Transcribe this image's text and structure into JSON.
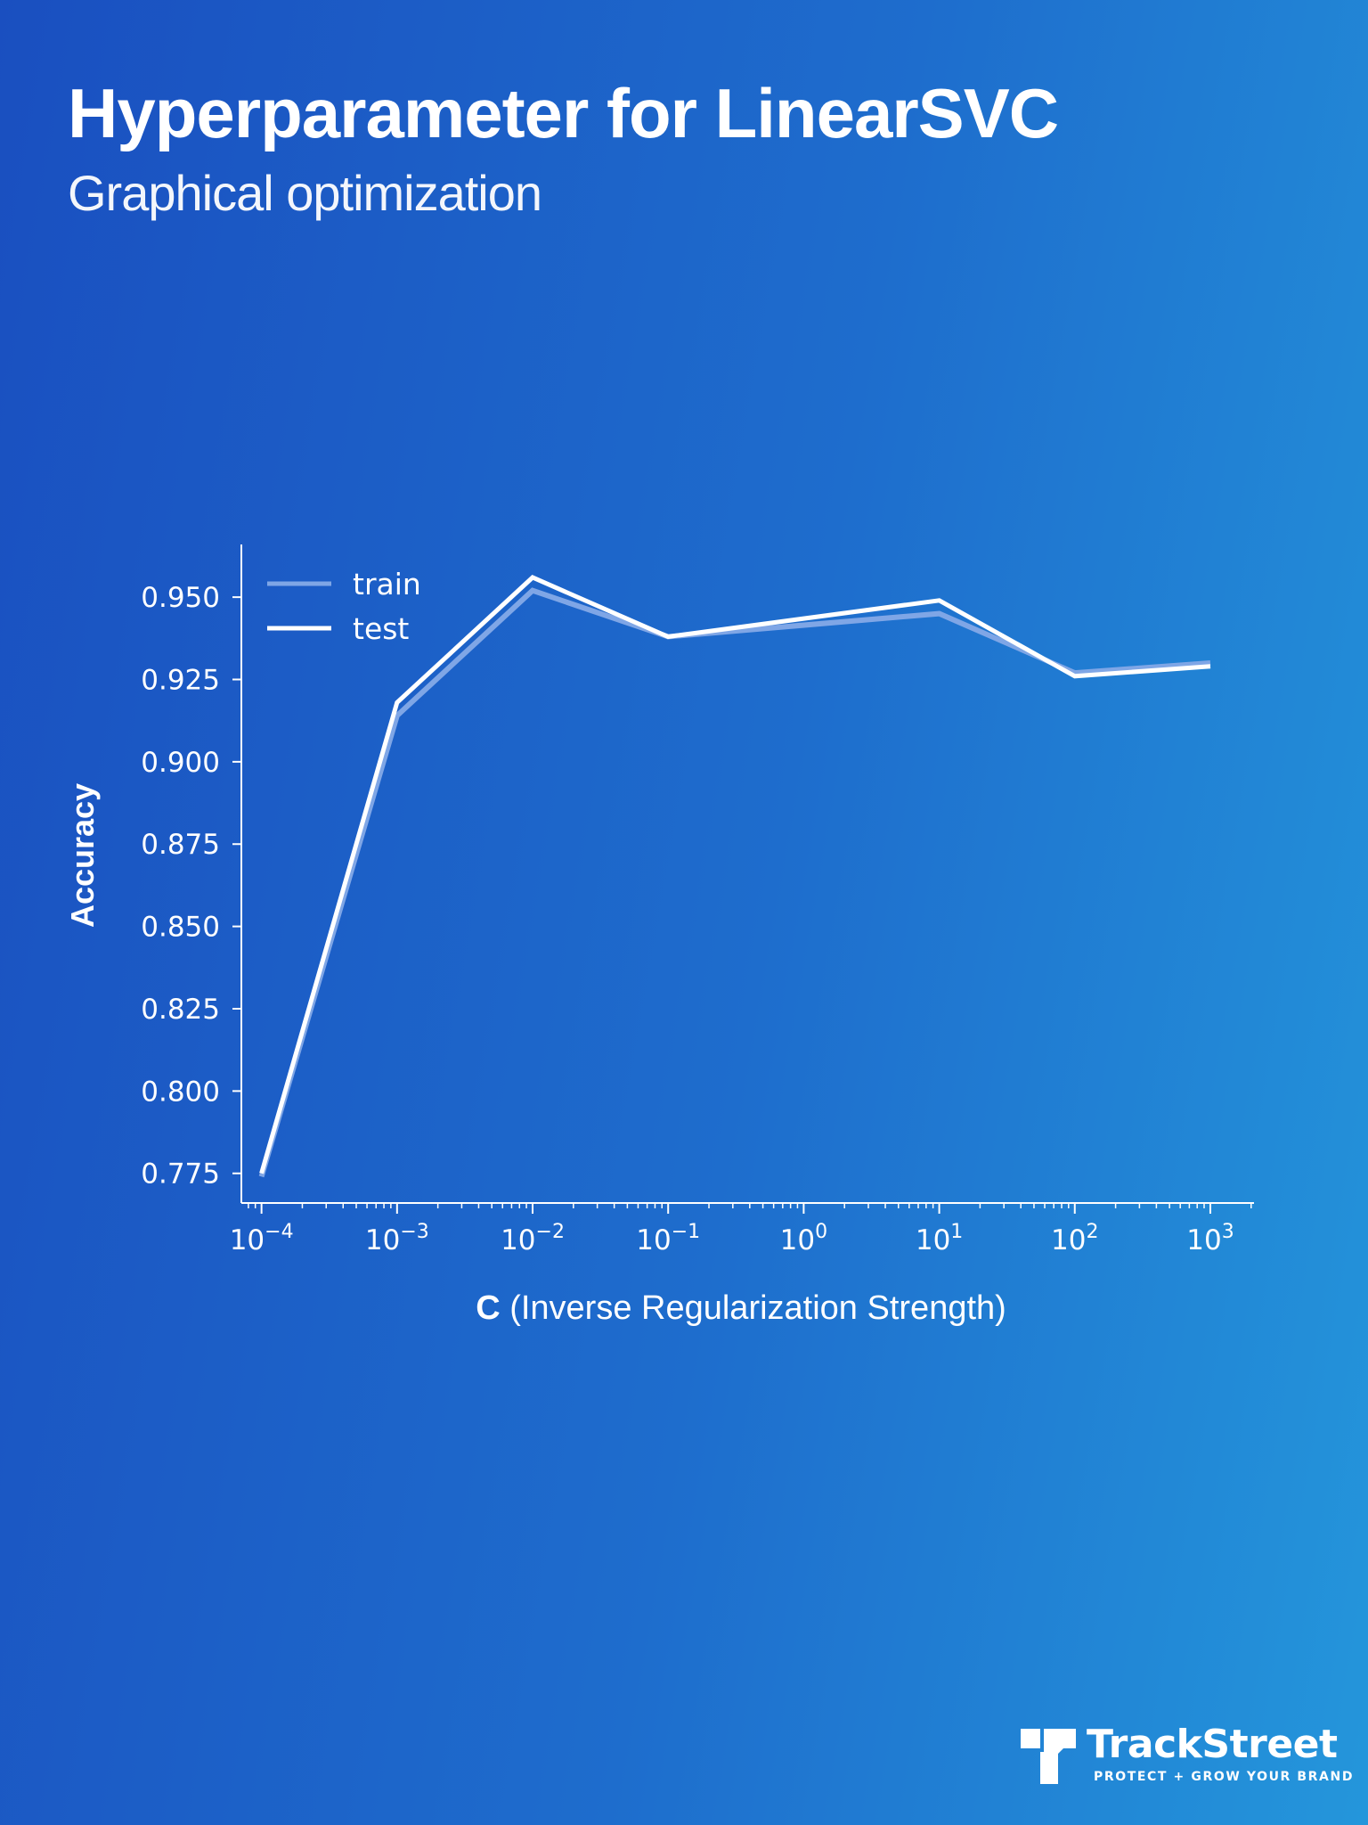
{
  "header": {
    "title": "Hyperparameter for LinearSVC",
    "subtitle": "Graphical optimization"
  },
  "brand": {
    "name": "TrackStreet",
    "tagline": "PROTECT + GROW YOUR BRAND"
  },
  "colors": {
    "background_left": "#1a4fc0",
    "background_right": "#2496db",
    "test_line": "#ffffff",
    "train_line": "#7fa6e6"
  },
  "chart_data": {
    "type": "line",
    "xscale": "log",
    "xlabel_bold": "C",
    "xlabel_rest": " (Inverse Regularization Strength)",
    "ylabel": "Accuracy",
    "x": [
      0.0001,
      0.001,
      0.01,
      0.1,
      10,
      100,
      1000
    ],
    "x_tick_labels": [
      "10",
      "10",
      "10",
      "10",
      "10",
      "10",
      "10",
      "10"
    ],
    "x_tick_exponents": [
      "−4",
      "−3",
      "−2",
      "−1",
      "0",
      "1",
      "2",
      "3"
    ],
    "y_ticks": [
      "0.775",
      "0.800",
      "0.825",
      "0.850",
      "0.875",
      "0.900",
      "0.925",
      "0.950"
    ],
    "ylim": [
      0.766,
      0.966
    ],
    "xlim": [
      7.1e-05,
      2100
    ],
    "series": [
      {
        "name": "train",
        "values": [
          0.774,
          0.914,
          0.952,
          0.938,
          0.945,
          0.927,
          0.93
        ]
      },
      {
        "name": "test",
        "values": [
          0.775,
          0.918,
          0.956,
          0.938,
          0.949,
          0.926,
          0.929
        ]
      }
    ],
    "legend_position": "upper-left",
    "grid": false
  }
}
